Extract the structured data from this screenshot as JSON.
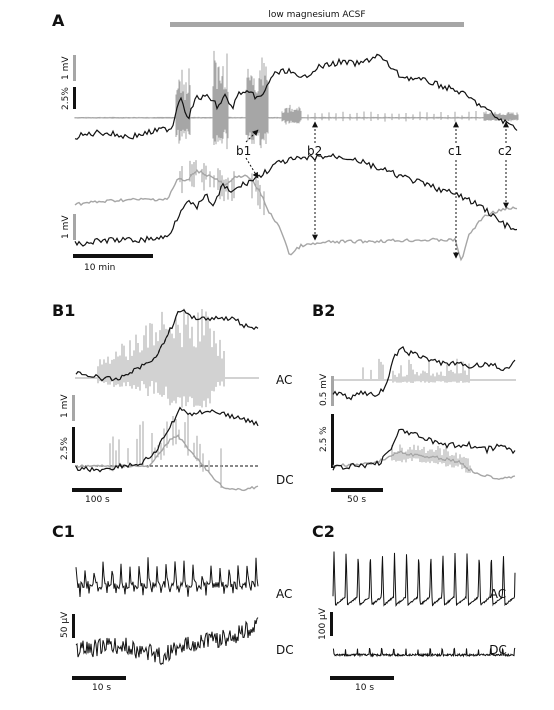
{
  "colors": {
    "black_trace": "#111111",
    "gray_trace": "#a6a6a6",
    "bar_gray": "#a6a6a6"
  },
  "panel_a": {
    "letter": "A",
    "condition": "low magnesium ACSF",
    "scale_1mv": "1 mV",
    "scale_pct": "2.5%",
    "scale_1mv_lower": "1 mV",
    "time_scale": "10 min",
    "markers": [
      "b1",
      "b2",
      "c1",
      "c2"
    ]
  },
  "panel_b1": {
    "letter": "B1",
    "ac": "AC",
    "dc": "DC",
    "scale_1mv": "1 mV",
    "scale_pct": "2.5%",
    "time_scale": "100 s"
  },
  "panel_b2": {
    "letter": "B2",
    "ac": "AC",
    "dc": "DC",
    "scale_mv": "0.5 mV",
    "scale_pct": "2.5 %",
    "time_scale": "50 s"
  },
  "panel_c1": {
    "letter": "C1",
    "ac": "AC",
    "dc": "DC",
    "scale_uv": "50 μV",
    "time_scale": "10 s"
  },
  "panel_c2": {
    "letter": "C2",
    "ac": "AC",
    "dc": "DC",
    "scale_uv": "100 μV",
    "time_scale": "10 s"
  }
}
